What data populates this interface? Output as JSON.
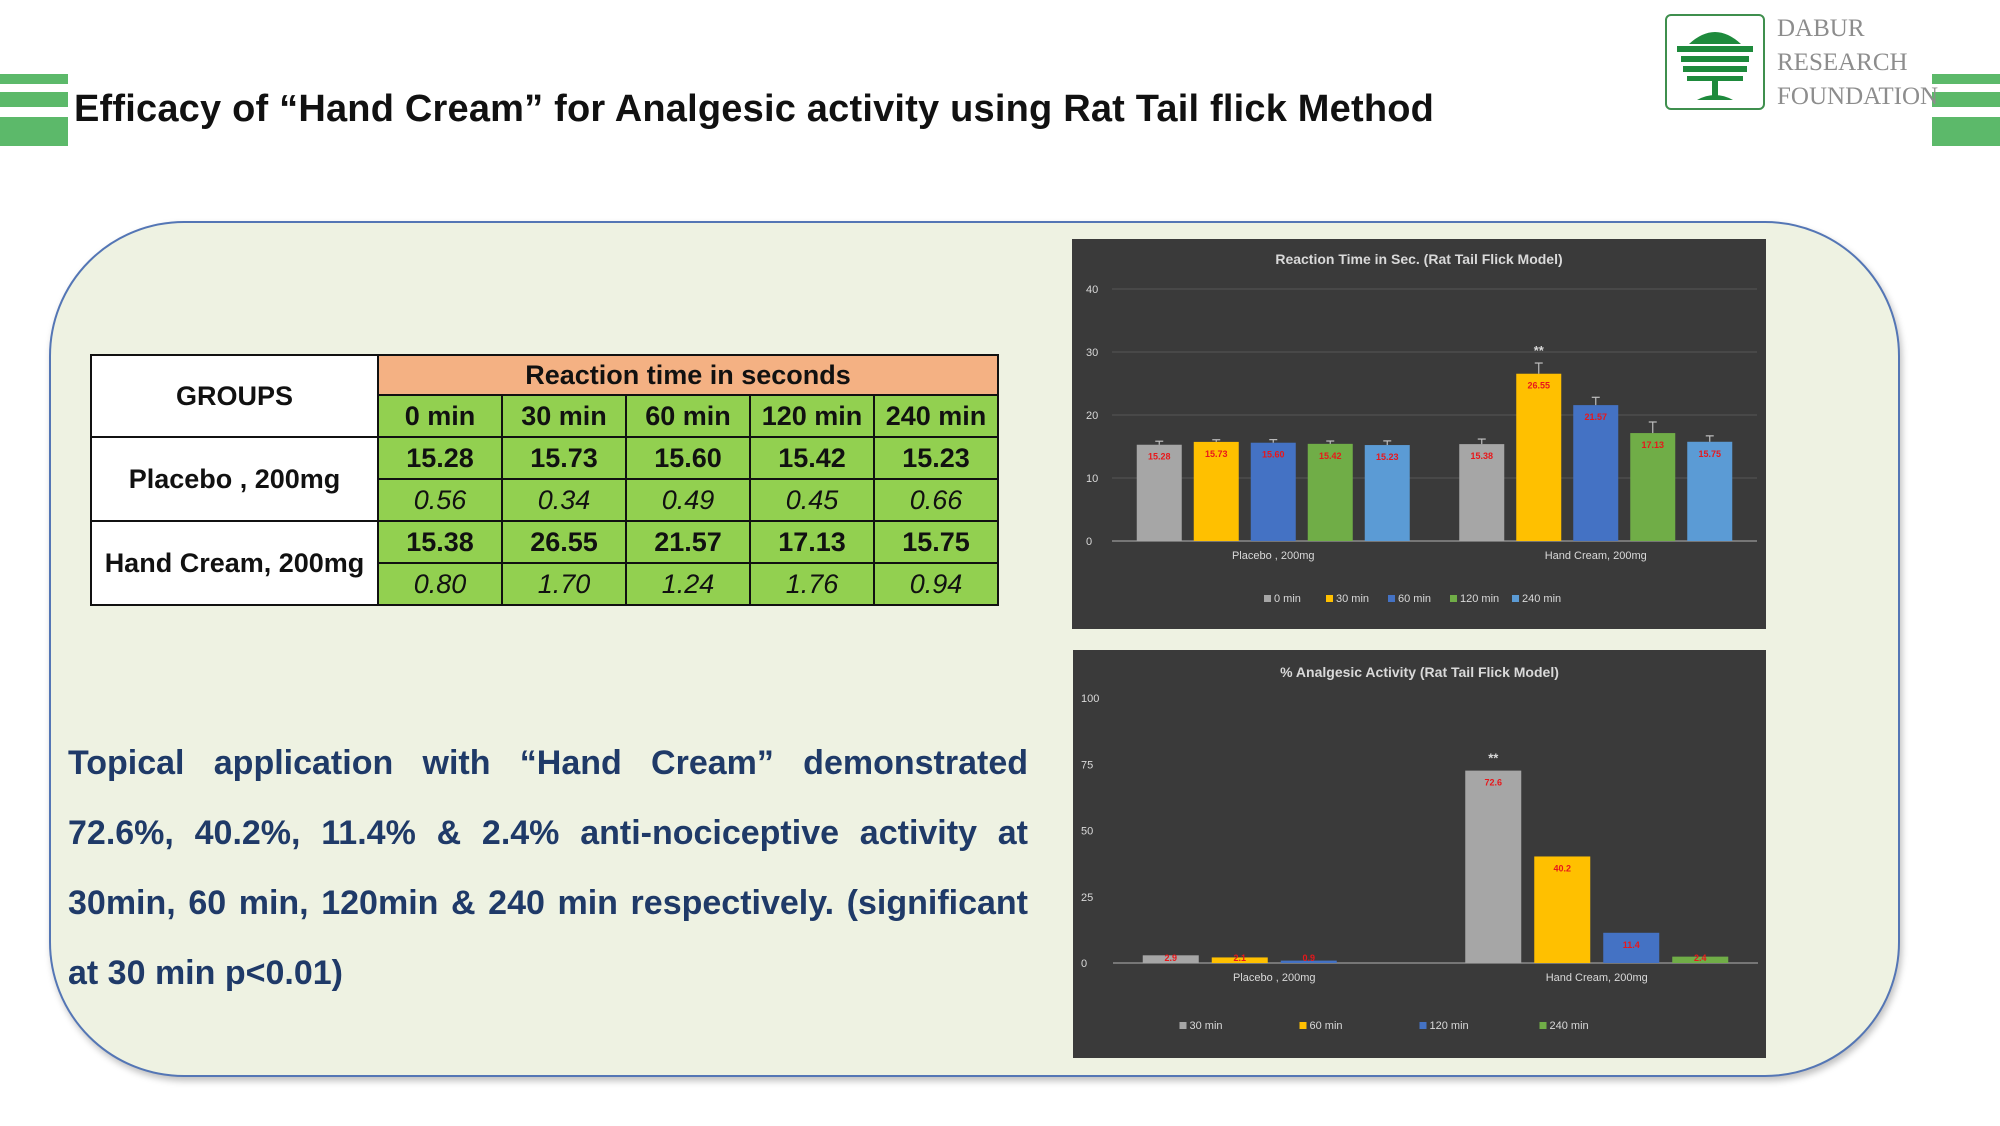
{
  "slide": {
    "title": "Efficacy of “Hand Cream” for Analgesic activity using Rat Tail flick Method",
    "summary": "Topical application with “Hand Cream” demonstrated 72.6%, 40.2%, 11.4% & 2.4% anti-nociceptive activity at 30min, 60 min, 120min & 240 min respectively. (significant at 30 min p<0.01)"
  },
  "logo": {
    "line1": "DABUR",
    "line2": "RESEARCH",
    "line3": "FOUNDATION",
    "icon": "tree-logo-icon"
  },
  "colors": {
    "accent_green": "#5cb96a",
    "panel_bg": "#eef2e2",
    "panel_border": "#5476b5",
    "header_orange": "#f4b183",
    "cell_green": "#92d050",
    "summary_text": "#1f3a68"
  },
  "table": {
    "groups_header": "GROUPS",
    "reaction_header": "Reaction time in seconds",
    "timepoints": [
      "0 min",
      "30 min",
      "60 min",
      "120 min",
      "240 min"
    ],
    "rows": [
      {
        "group": "Placebo , 200mg",
        "mean": [
          "15.28",
          "15.73",
          "15.60",
          "15.42",
          "15.23"
        ],
        "sem": [
          "0.56",
          "0.34",
          "0.49",
          "0.45",
          "0.66"
        ]
      },
      {
        "group": "Hand Cream, 200mg",
        "mean": [
          "15.38",
          "26.55",
          "21.57",
          "17.13",
          "15.75"
        ],
        "sem": [
          "0.80",
          "1.70",
          "1.24",
          "1.76",
          "0.94"
        ]
      }
    ]
  },
  "chart_data": [
    {
      "type": "bar",
      "title": "Reaction Time in Sec. (Rat Tail Flick Model)",
      "categories": [
        "Placebo , 200mg",
        "Hand Cream, 200mg"
      ],
      "ylim": [
        0,
        40
      ],
      "yticks": [
        0,
        10,
        20,
        30,
        40
      ],
      "grid": true,
      "legend_position": "bottom",
      "series": [
        {
          "name": "0 min",
          "color": "#a6a6a6",
          "values": [
            15.28,
            15.38
          ],
          "labels": [
            "15.28",
            "15.38"
          ],
          "errors": [
            0.56,
            0.8
          ]
        },
        {
          "name": "30 min",
          "color": "#ffc000",
          "values": [
            15.73,
            26.55
          ],
          "labels": [
            "15.73",
            "26.55"
          ],
          "errors": [
            0.34,
            1.7
          ]
        },
        {
          "name": "60 min",
          "color": "#4472c4",
          "values": [
            15.6,
            21.57
          ],
          "labels": [
            "15.60",
            "21.57"
          ],
          "errors": [
            0.49,
            1.24
          ]
        },
        {
          "name": "120 min",
          "color": "#70ad47",
          "values": [
            15.42,
            17.13
          ],
          "labels": [
            "15.42",
            "17.13"
          ],
          "errors": [
            0.45,
            1.76
          ]
        },
        {
          "name": "240 min",
          "color": "#5b9bd5",
          "values": [
            15.23,
            15.75
          ],
          "labels": [
            "15.23",
            "15.75"
          ],
          "errors": [
            0.66,
            0.94
          ]
        }
      ],
      "annotations": [
        {
          "text": "**",
          "category": 1,
          "series": 1
        }
      ]
    },
    {
      "type": "bar",
      "title": "% Analgesic Activity (Rat Tail Flick Model)",
      "categories": [
        "Placebo , 200mg",
        "Hand Cream, 200mg"
      ],
      "ylim": [
        0,
        100
      ],
      "yticks": [
        0,
        25,
        50,
        75,
        100
      ],
      "grid": false,
      "legend_position": "bottom",
      "series": [
        {
          "name": "30 min",
          "color": "#a6a6a6",
          "values": [
            2.9,
            72.6
          ],
          "labels": [
            "2.9",
            "72.6"
          ]
        },
        {
          "name": "60 min",
          "color": "#ffc000",
          "values": [
            2.1,
            40.2
          ],
          "labels": [
            "2.1",
            "40.2"
          ]
        },
        {
          "name": "120 min",
          "color": "#4472c4",
          "values": [
            0.9,
            11.4
          ],
          "labels": [
            "0.9",
            "11.4"
          ]
        },
        {
          "name": "240 min",
          "color": "#70ad47",
          "values": [
            0,
            2.4
          ],
          "labels": [
            "",
            "2.4"
          ]
        }
      ],
      "annotations": [
        {
          "text": "**",
          "category": 1,
          "series": 0
        }
      ]
    }
  ]
}
